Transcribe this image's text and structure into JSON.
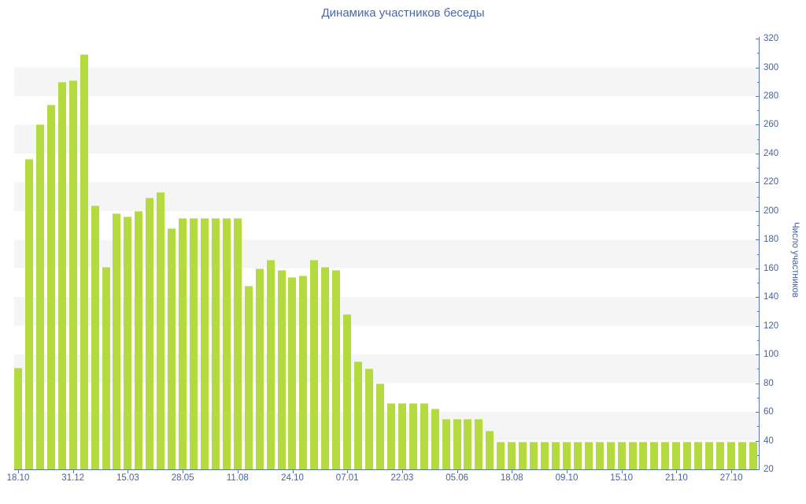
{
  "title": "Динамика участников беседы",
  "colors": {
    "bar_fill": "#b3da3e",
    "bar_edge": "#cae981",
    "axis": "#5877b0",
    "label_text": "#44639f",
    "title_text": "#4a69ab",
    "stripe": "#f5f5f5",
    "background": "#ffffff"
  },
  "chart_data": {
    "type": "bar",
    "title": "Динамика участников беседы",
    "xlabel": "",
    "ylabel": "Число участников",
    "ylim": [
      20,
      320
    ],
    "y_tick_step": 20,
    "y_minor_tick_step": 10,
    "grid": "horizontal-stripes",
    "legend": "none",
    "x_tick_labels": [
      "18.10",
      "31.12",
      "15.03",
      "28.05",
      "11.08",
      "24.10",
      "07.01",
      "22.03",
      "05.06",
      "18.08",
      "09.10",
      "15.10",
      "21.10",
      "27.10"
    ],
    "x_label_every_n_bars": 5,
    "values": [
      91,
      236,
      260,
      274,
      290,
      291,
      309,
      204,
      161,
      198,
      196,
      200,
      209,
      213,
      188,
      195,
      195,
      195,
      195,
      195,
      195,
      148,
      160,
      166,
      159,
      154,
      155,
      166,
      161,
      159,
      128,
      95,
      90,
      80,
      66,
      66,
      66,
      66,
      62,
      55,
      55,
      55,
      55,
      47,
      39,
      39,
      39,
      39,
      39,
      39,
      39,
      39,
      39,
      39,
      39,
      39,
      39,
      39,
      39,
      39,
      39,
      39,
      39,
      39,
      39,
      39,
      39,
      39
    ]
  },
  "y_axis": {
    "title": "Число участников",
    "tick_labels": [
      "20",
      "40",
      "60",
      "80",
      "100",
      "120",
      "140",
      "160",
      "180",
      "200",
      "220",
      "240",
      "260",
      "280",
      "300",
      "320"
    ]
  }
}
